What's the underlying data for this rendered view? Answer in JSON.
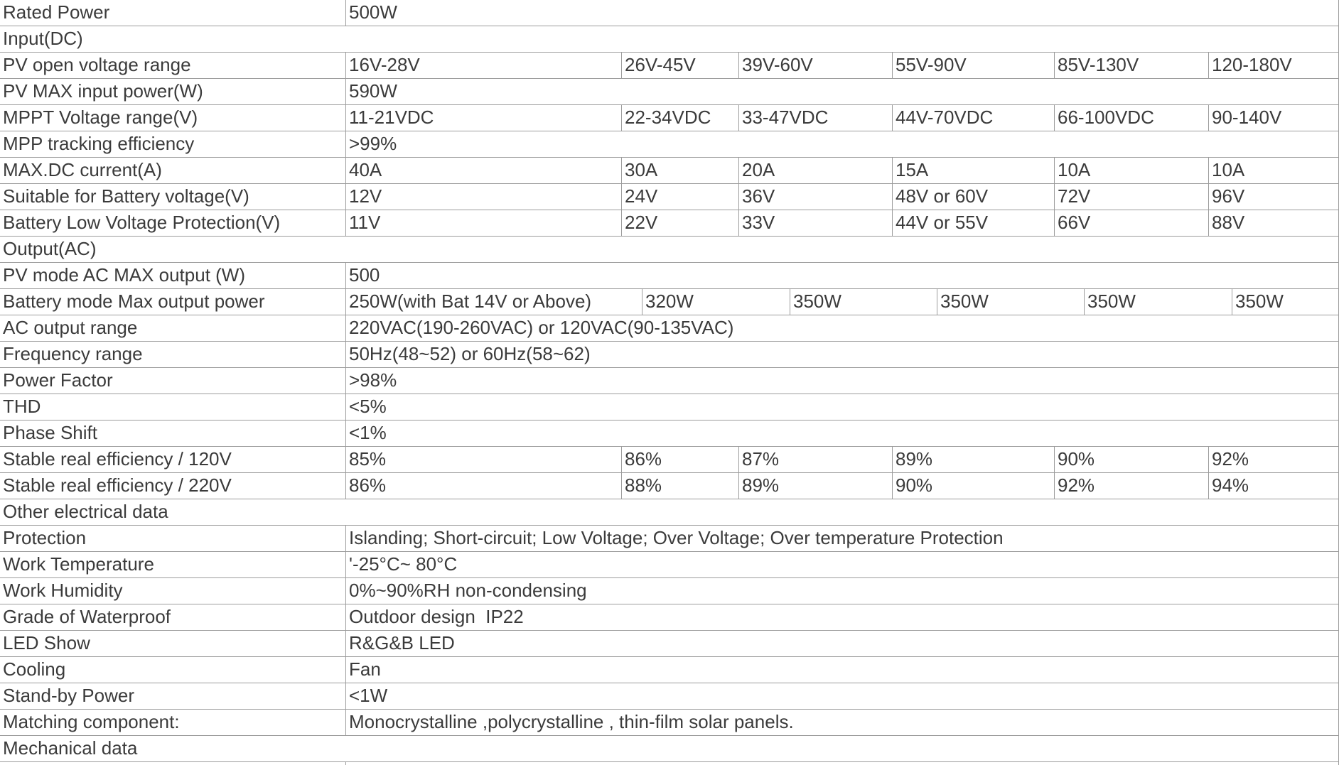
{
  "colors": {
    "background": "#ffffff",
    "grid_border": "#9c9c9c",
    "text": "#3b3b3b"
  },
  "table": {
    "title": "Solar inverter specification table",
    "rows": [
      {
        "type": "pair",
        "cells": [
          "Rated Power",
          "500W"
        ]
      },
      {
        "type": "section",
        "cells": [
          "Input(DC)"
        ]
      },
      {
        "type": "grid6",
        "cells": [
          "PV open voltage range",
          "16V-28V",
          "26V-45V",
          "39V-60V",
          "55V-90V",
          "85V-130V",
          "120-180V"
        ]
      },
      {
        "type": "pair",
        "cells": [
          "PV MAX input power(W)",
          "590W"
        ]
      },
      {
        "type": "grid6",
        "cells": [
          "MPPT Voltage range(V)",
          "11-21VDC",
          "22-34VDC",
          "33-47VDC",
          "44V-70VDC",
          "66-100VDC",
          "90-140V"
        ]
      },
      {
        "type": "pair",
        "cells": [
          "MPP tracking efficiency",
          ">99%"
        ]
      },
      {
        "type": "grid6",
        "cells": [
          "MAX.DC current(A)",
          "40A",
          "30A",
          "20A",
          "15A",
          "10A",
          "10A"
        ]
      },
      {
        "type": "grid6",
        "cells": [
          "Suitable for Battery voltage(V)",
          "12V",
          "24V",
          "36V",
          "48V or 60V",
          "72V",
          "96V"
        ]
      },
      {
        "type": "grid6",
        "cells": [
          "Battery Low Voltage Protection(V)",
          "11V",
          "22V",
          "33V",
          "44V or 55V",
          "66V",
          "88V"
        ]
      },
      {
        "type": "section",
        "cells": [
          "Output(AC)"
        ]
      },
      {
        "type": "pair",
        "cells": [
          "PV mode AC MAX output (W)",
          "500"
        ]
      },
      {
        "type": "battery",
        "cells": [
          "Battery mode Max output power",
          "250W(with Bat 14V or Above)",
          "320W",
          "350W",
          "350W",
          "350W",
          "350W"
        ]
      },
      {
        "type": "pair",
        "cells": [
          "AC output range",
          "220VAC(190-260VAC) or 120VAC(90-135VAC)"
        ]
      },
      {
        "type": "pair",
        "cells": [
          "Frequency range",
          "50Hz(48~52) or 60Hz(58~62)"
        ]
      },
      {
        "type": "pair",
        "cells": [
          "Power Factor",
          ">98%"
        ]
      },
      {
        "type": "pair",
        "cells": [
          "THD",
          "<5%"
        ]
      },
      {
        "type": "pair",
        "cells": [
          "Phase Shift",
          "<1%"
        ]
      },
      {
        "type": "grid6",
        "cells": [
          "Stable real efficiency / 120V",
          "85%",
          "86%",
          "87%",
          "89%",
          "90%",
          "92%"
        ]
      },
      {
        "type": "grid6",
        "cells": [
          "Stable real efficiency / 220V",
          "86%",
          "88%",
          "89%",
          "90%",
          "92%",
          "94%"
        ]
      },
      {
        "type": "section",
        "cells": [
          "Other electrical data"
        ]
      },
      {
        "type": "pair",
        "cells": [
          "Protection",
          "Islanding; Short-circuit; Low Voltage; Over Voltage; Over temperature Protection"
        ]
      },
      {
        "type": "pair",
        "cells": [
          "Work Temperature",
          "'-25°C~ 80°C"
        ]
      },
      {
        "type": "pair",
        "cells": [
          "Work Humidity",
          "0%~90%RH non-condensing"
        ]
      },
      {
        "type": "pair",
        "cells": [
          "Grade of Waterproof",
          "Outdoor design  IP22"
        ]
      },
      {
        "type": "pair",
        "cells": [
          "LED Show",
          "R&G&B LED"
        ]
      },
      {
        "type": "pair",
        "cells": [
          "Cooling",
          "Fan"
        ]
      },
      {
        "type": "pair",
        "cells": [
          "Stand-by Power",
          "<1W"
        ]
      },
      {
        "type": "pair",
        "cells": [
          "Matching component:",
          "Monocrystalline ,polycrystalline , thin-film solar panels."
        ]
      },
      {
        "type": "section",
        "cells": [
          "Mechanical data"
        ]
      }
    ]
  }
}
